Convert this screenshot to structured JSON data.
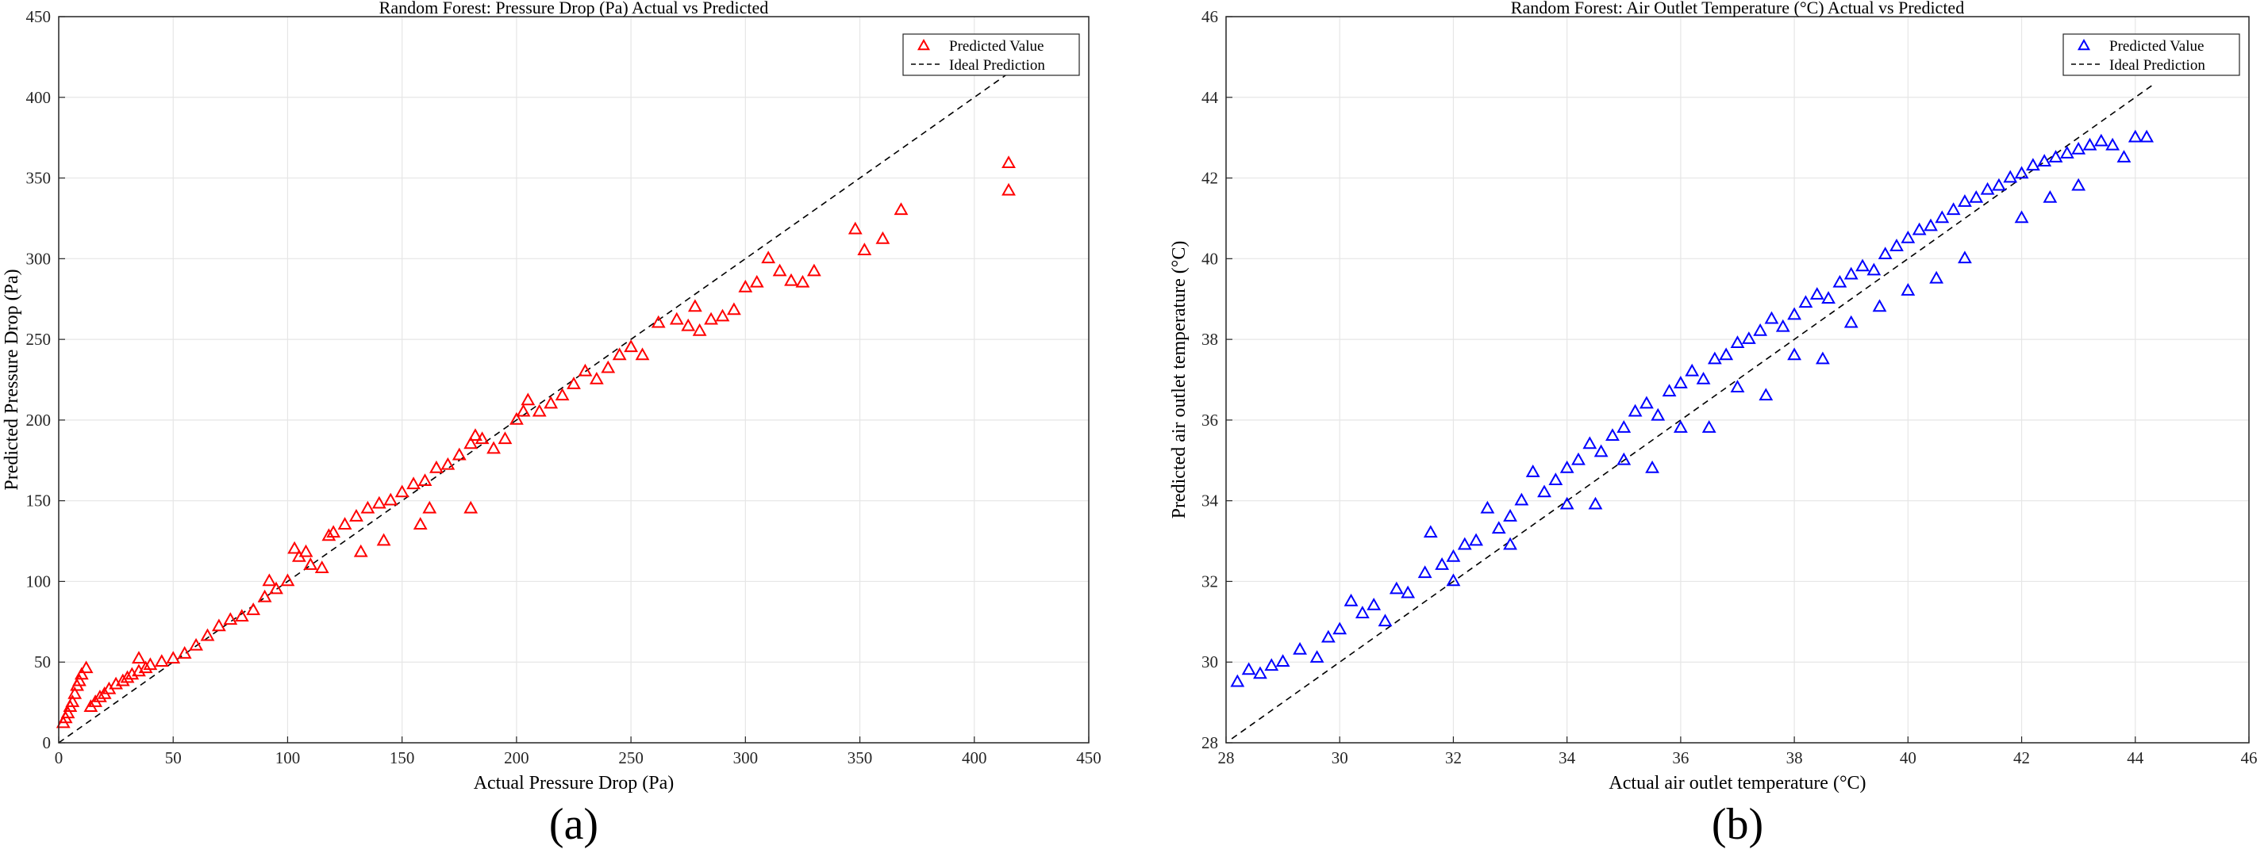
{
  "chart_data": [
    {
      "type": "scatter",
      "title": "Random Forest: Pressure Drop (Pa) Actual vs Predicted",
      "xlabel": "Actual Pressure Drop (Pa)",
      "ylabel": "Predicted Pressure Drop (Pa)",
      "xlim": [
        0,
        450
      ],
      "ylim": [
        0,
        450
      ],
      "xticks": [
        "0",
        "50",
        "100",
        "150",
        "200",
        "250",
        "300",
        "350",
        "400",
        "450"
      ],
      "yticks": [
        "0",
        "50",
        "100",
        "150",
        "200",
        "250",
        "300",
        "350",
        "400",
        "450"
      ],
      "grid": true,
      "legend_position": "top-right",
      "caption": "(a)",
      "series": [
        {
          "name": "Predicted Value",
          "marker": "triangle",
          "color": "#ff0000",
          "points": [
            [
              2,
              12
            ],
            [
              3,
              15
            ],
            [
              4,
              18
            ],
            [
              5,
              22
            ],
            [
              6,
              25
            ],
            [
              7,
              30
            ],
            [
              8,
              35
            ],
            [
              9,
              38
            ],
            [
              10,
              42
            ],
            [
              12,
              46
            ],
            [
              14,
              22
            ],
            [
              16,
              25
            ],
            [
              18,
              28
            ],
            [
              20,
              30
            ],
            [
              22,
              33
            ],
            [
              25,
              36
            ],
            [
              28,
              38
            ],
            [
              30,
              40
            ],
            [
              32,
              42
            ],
            [
              35,
              44
            ],
            [
              35,
              52
            ],
            [
              38,
              46
            ],
            [
              40,
              48
            ],
            [
              45,
              50
            ],
            [
              50,
              52
            ],
            [
              55,
              55
            ],
            [
              60,
              60
            ],
            [
              65,
              66
            ],
            [
              70,
              72
            ],
            [
              75,
              76
            ],
            [
              80,
              78
            ],
            [
              85,
              82
            ],
            [
              90,
              90
            ],
            [
              92,
              100
            ],
            [
              95,
              95
            ],
            [
              100,
              100
            ],
            [
              103,
              120
            ],
            [
              105,
              115
            ],
            [
              108,
              118
            ],
            [
              110,
              110
            ],
            [
              115,
              108
            ],
            [
              118,
              128
            ],
            [
              120,
              130
            ],
            [
              125,
              135
            ],
            [
              130,
              140
            ],
            [
              132,
              118
            ],
            [
              135,
              145
            ],
            [
              140,
              148
            ],
            [
              142,
              125
            ],
            [
              145,
              150
            ],
            [
              150,
              155
            ],
            [
              155,
              160
            ],
            [
              158,
              135
            ],
            [
              160,
              162
            ],
            [
              162,
              145
            ],
            [
              165,
              170
            ],
            [
              170,
              172
            ],
            [
              175,
              178
            ],
            [
              180,
              185
            ],
            [
              180,
              145
            ],
            [
              182,
              190
            ],
            [
              185,
              188
            ],
            [
              190,
              182
            ],
            [
              195,
              188
            ],
            [
              200,
              200
            ],
            [
              203,
              205
            ],
            [
              205,
              212
            ],
            [
              210,
              205
            ],
            [
              215,
              210
            ],
            [
              220,
              215
            ],
            [
              225,
              222
            ],
            [
              230,
              230
            ],
            [
              235,
              225
            ],
            [
              240,
              232
            ],
            [
              245,
              240
            ],
            [
              250,
              245
            ],
            [
              255,
              240
            ],
            [
              262,
              260
            ],
            [
              270,
              262
            ],
            [
              275,
              258
            ],
            [
              278,
              270
            ],
            [
              280,
              255
            ],
            [
              285,
              262
            ],
            [
              290,
              264
            ],
            [
              295,
              268
            ],
            [
              300,
              282
            ],
            [
              305,
              285
            ],
            [
              310,
              300
            ],
            [
              315,
              292
            ],
            [
              320,
              286
            ],
            [
              325,
              285
            ],
            [
              330,
              292
            ],
            [
              348,
              318
            ],
            [
              352,
              305
            ],
            [
              360,
              312
            ],
            [
              368,
              330
            ],
            [
              415,
              359
            ],
            [
              415,
              342
            ]
          ]
        },
        {
          "name": "Ideal Prediction",
          "style": "dashed",
          "color": "#000000",
          "line": [
            [
              0,
              0
            ],
            [
              415,
              415
            ]
          ]
        }
      ]
    },
    {
      "type": "scatter",
      "title": "Random Forest: Air Outlet Temperature (°C) Actual vs Predicted",
      "xlabel": "Actual air outlet temperature (°C)",
      "ylabel": "Predicted air outlet temperature (°C)",
      "xlim": [
        28,
        46
      ],
      "ylim": [
        28,
        46
      ],
      "xticks": [
        "28",
        "30",
        "32",
        "34",
        "36",
        "38",
        "40",
        "42",
        "44",
        "46"
      ],
      "yticks": [
        "28",
        "30",
        "32",
        "34",
        "36",
        "38",
        "40",
        "42",
        "44",
        "46"
      ],
      "grid": true,
      "legend_position": "top-right",
      "caption": "(b)",
      "series": [
        {
          "name": "Predicted Value",
          "marker": "triangle",
          "color": "#0000ff",
          "points": [
            [
              28.2,
              29.5
            ],
            [
              28.4,
              29.8
            ],
            [
              28.6,
              29.7
            ],
            [
              28.8,
              29.9
            ],
            [
              29.0,
              30.0
            ],
            [
              29.3,
              30.3
            ],
            [
              29.6,
              30.1
            ],
            [
              29.8,
              30.6
            ],
            [
              30.0,
              30.8
            ],
            [
              30.2,
              31.5
            ],
            [
              30.4,
              31.2
            ],
            [
              30.6,
              31.4
            ],
            [
              30.8,
              31.0
            ],
            [
              31.0,
              31.8
            ],
            [
              31.2,
              31.7
            ],
            [
              31.5,
              32.2
            ],
            [
              31.6,
              33.2
            ],
            [
              31.8,
              32.4
            ],
            [
              32.0,
              32.6
            ],
            [
              32.2,
              32.9
            ],
            [
              32.4,
              33.0
            ],
            [
              32.6,
              33.8
            ],
            [
              32.8,
              33.3
            ],
            [
              33.0,
              33.6
            ],
            [
              33.2,
              34.0
            ],
            [
              33.4,
              34.7
            ],
            [
              33.6,
              34.2
            ],
            [
              33.8,
              34.5
            ],
            [
              34.0,
              34.8
            ],
            [
              34.2,
              35.0
            ],
            [
              34.4,
              35.4
            ],
            [
              34.6,
              35.2
            ],
            [
              34.8,
              35.6
            ],
            [
              35.0,
              35.8
            ],
            [
              35.2,
              36.2
            ],
            [
              35.4,
              36.4
            ],
            [
              35.6,
              36.1
            ],
            [
              35.8,
              36.7
            ],
            [
              36.0,
              36.9
            ],
            [
              36.2,
              37.2
            ],
            [
              36.4,
              37.0
            ],
            [
              36.6,
              37.5
            ],
            [
              36.8,
              37.6
            ],
            [
              37.0,
              37.9
            ],
            [
              37.2,
              38.0
            ],
            [
              37.4,
              38.2
            ],
            [
              37.6,
              38.5
            ],
            [
              37.8,
              38.3
            ],
            [
              38.0,
              38.6
            ],
            [
              38.2,
              38.9
            ],
            [
              38.4,
              39.1
            ],
            [
              38.6,
              39.0
            ],
            [
              38.8,
              39.4
            ],
            [
              39.0,
              39.6
            ],
            [
              39.2,
              39.8
            ],
            [
              39.4,
              39.7
            ],
            [
              39.6,
              40.1
            ],
            [
              39.8,
              40.3
            ],
            [
              40.0,
              40.5
            ],
            [
              40.2,
              40.7
            ],
            [
              40.4,
              40.8
            ],
            [
              40.6,
              41.0
            ],
            [
              40.8,
              41.2
            ],
            [
              41.0,
              41.4
            ],
            [
              41.2,
              41.5
            ],
            [
              41.4,
              41.7
            ],
            [
              41.6,
              41.8
            ],
            [
              41.8,
              42.0
            ],
            [
              42.0,
              42.1
            ],
            [
              42.2,
              42.3
            ],
            [
              42.4,
              42.4
            ],
            [
              42.6,
              42.5
            ],
            [
              42.8,
              42.6
            ],
            [
              43.0,
              42.7
            ],
            [
              43.2,
              42.8
            ],
            [
              43.4,
              42.9
            ],
            [
              43.6,
              42.8
            ],
            [
              43.8,
              42.5
            ],
            [
              44.0,
              43.0
            ],
            [
              44.2,
              43.0
            ],
            [
              32.0,
              32.0
            ],
            [
              33.0,
              32.9
            ],
            [
              34.0,
              33.9
            ],
            [
              35.0,
              35.0
            ],
            [
              36.0,
              35.8
            ],
            [
              37.0,
              36.8
            ],
            [
              38.0,
              37.6
            ],
            [
              39.0,
              38.4
            ],
            [
              40.0,
              39.2
            ],
            [
              40.5,
              39.5
            ],
            [
              41.0,
              40.0
            ],
            [
              42.0,
              41.0
            ],
            [
              42.5,
              41.5
            ],
            [
              43.0,
              41.8
            ],
            [
              39.5,
              38.8
            ],
            [
              38.5,
              37.5
            ],
            [
              37.5,
              36.6
            ],
            [
              36.5,
              35.8
            ],
            [
              35.5,
              34.8
            ],
            [
              34.5,
              33.9
            ]
          ]
        },
        {
          "name": "Ideal Prediction",
          "style": "dashed",
          "color": "#000000",
          "line": [
            [
              28.1,
              28.1
            ],
            [
              44.3,
              44.3
            ]
          ]
        }
      ]
    }
  ]
}
